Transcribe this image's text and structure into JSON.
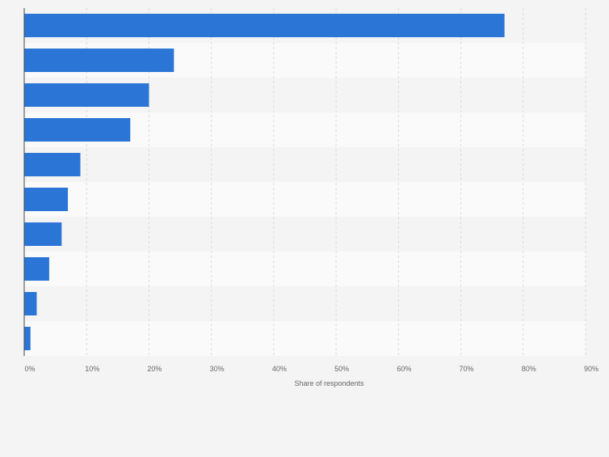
{
  "chart_data": {
    "type": "bar",
    "orientation": "horizontal",
    "categories": [
      "",
      "",
      "",
      "",
      "",
      "",
      "",
      "",
      "",
      ""
    ],
    "values": [
      77,
      24,
      20,
      17,
      9,
      7,
      6,
      4,
      2,
      1
    ],
    "title": "",
    "xlabel": "Share of respondents",
    "ylabel": "",
    "xlim": [
      0,
      90
    ],
    "x_ticks": [
      "0%",
      "10%",
      "20%",
      "30%",
      "40%",
      "50%",
      "60%",
      "70%",
      "80%",
      "90%"
    ],
    "grid": true,
    "legend": "none",
    "bar_color": "#2a75d6",
    "band_colors": [
      "#f4f4f4",
      "#fafafa"
    ]
  }
}
